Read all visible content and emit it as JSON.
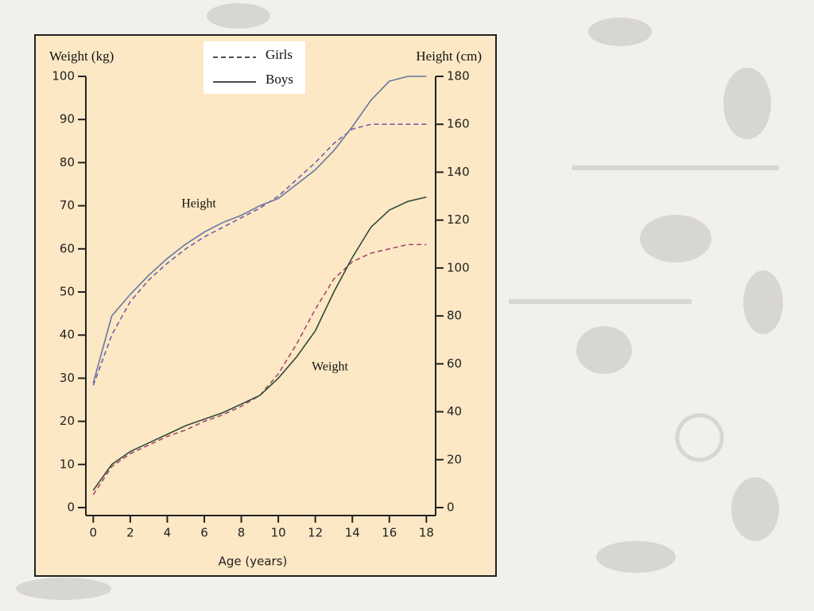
{
  "chart_data": {
    "type": "line",
    "y_label": "Weight (kg)",
    "y2_label": "Height (cm)",
    "x_label": "Age (years)",
    "annotations": [
      "Height",
      "Weight"
    ],
    "x": [
      0,
      1,
      2,
      3,
      4,
      5,
      6,
      7,
      8,
      9,
      10,
      11,
      12,
      13,
      14,
      15,
      16,
      17,
      18
    ],
    "xlim": [
      -0.4,
      18.5
    ],
    "xticks": [
      0,
      2,
      4,
      6,
      8,
      10,
      12,
      14,
      16,
      18
    ],
    "ylim": [
      0,
      100
    ],
    "yticks": [
      0,
      10,
      20,
      30,
      40,
      50,
      60,
      70,
      80,
      90,
      100
    ],
    "y2lim": [
      0,
      180
    ],
    "y2ticks": [
      0,
      20,
      40,
      60,
      80,
      100,
      120,
      140,
      160,
      180
    ],
    "series": [
      {
        "name": "Girls",
        "dashed": true,
        "color": "#7060a8",
        "axis": "y2",
        "values": [
          51,
          72,
          86,
          95,
          102,
          108,
          113,
          117,
          121,
          125,
          130,
          137,
          144,
          152,
          158,
          160,
          160,
          160,
          160
        ]
      },
      {
        "name": "Boys",
        "dashed": false,
        "color": "#6878a0",
        "axis": "y2",
        "values": [
          52,
          80,
          89,
          97,
          104,
          110,
          115,
          119,
          122,
          126,
          129,
          135,
          141,
          149,
          159,
          170,
          178,
          180,
          180
        ]
      },
      {
        "name": "Girls",
        "dashed": true,
        "color": "#a04a70",
        "values": [
          3,
          9.5,
          12.5,
          14.5,
          16.5,
          18,
          20,
          21.5,
          23.5,
          26,
          31,
          38,
          46,
          53,
          57,
          59,
          60,
          61,
          61
        ]
      },
      {
        "name": "Boys",
        "dashed": false,
        "color": "#2f4a38",
        "values": [
          4,
          10,
          13,
          15,
          17,
          19,
          20.5,
          22,
          24,
          26,
          30,
          35,
          41,
          50,
          58,
          65,
          69,
          71,
          72
        ]
      }
    ]
  }
}
